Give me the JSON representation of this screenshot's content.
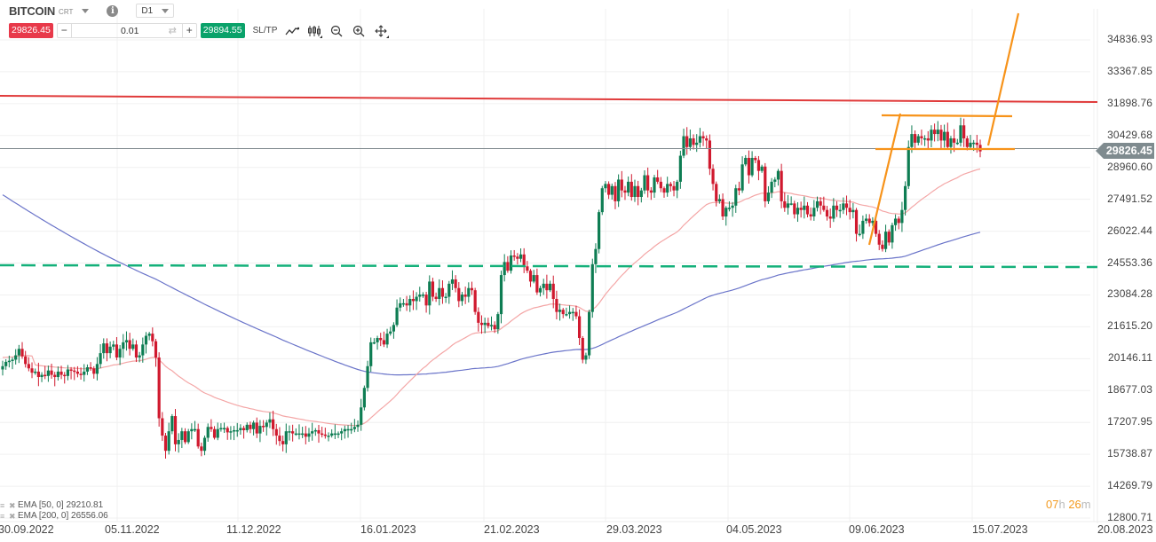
{
  "header": {
    "symbol": "BITCOIN",
    "symbol_suffix": "CRT",
    "timeframe": "D1",
    "sell_price": "29826.45",
    "quantity": "0.01",
    "buy_price": "29894.55",
    "sltp_label": "SL/TP",
    "icons": [
      "chart-type-icon",
      "indicators-icon",
      "zoom-out-icon",
      "zoom-in-icon",
      "crosshair-icon"
    ]
  },
  "colors": {
    "bull": "#0e7d53",
    "bear": "#d0192e",
    "ema50": "#f4a6a6",
    "ema200": "#6a74c9",
    "resistance": "#e03a3a",
    "support": "#14b07a",
    "drawing": "#f7931a",
    "current_line": "#808a8e",
    "sell": "#e8394a",
    "buy": "#0aa26a"
  },
  "legend": [
    {
      "label": "EMA [50, 0] 29210.81"
    },
    {
      "label": "EMA [200, 0] 26556.06"
    }
  ],
  "current_price_tag": "29826.45",
  "countdown": {
    "h": "07",
    "h_unit": "h",
    "m": "26",
    "m_unit": "m"
  },
  "chart_data": {
    "type": "candlestick",
    "title": "BITCOIN CRT D1",
    "xlabel": "",
    "ylabel": "",
    "y_ticks": [
      "34836.93",
      "33367.85",
      "31898.76",
      "30429.68",
      "28960.60",
      "27491.52",
      "26022.44",
      "24553.36",
      "23084.28",
      "21615.20",
      "20146.11",
      "18677.03",
      "17207.95",
      "15738.87",
      "14269.79",
      "12800.71"
    ],
    "x_ticks": [
      "30.09.2022",
      "05.11.2022",
      "11.12.2022",
      "16.01.2023",
      "21.02.2023",
      "29.03.2023",
      "04.05.2023",
      "09.06.2023",
      "15.07.2023",
      "20.08.2023"
    ],
    "ylim": [
      12800.71,
      34836.93
    ],
    "current_price": 29826.45,
    "horizontal_lines": [
      {
        "name": "resistance",
        "price_start": 32380,
        "price_end": 31950,
        "style": "solid"
      },
      {
        "name": "support",
        "price": 24600,
        "style": "dashed"
      }
    ],
    "indicators": [
      {
        "name": "EMA [50, 0]",
        "last": 29210.81
      },
      {
        "name": "EMA [200, 0]",
        "last": 26556.06
      }
    ],
    "closes": [
      19800,
      20000,
      20050,
      20100,
      20300,
      20600,
      20250,
      19900,
      19700,
      19500,
      19550,
      19300,
      19400,
      19350,
      19600,
      19400,
      19300,
      19550,
      19400,
      19350,
      19650,
      19600,
      19550,
      19450,
      19400,
      19550,
      19750,
      19700,
      19450,
      19900,
      20400,
      20850,
      20400,
      20700,
      20800,
      20200,
      20600,
      20900,
      21000,
      20600,
      20800,
      20200,
      20300,
      20800,
      21200,
      21300,
      20950,
      20200,
      17400,
      16600,
      15900,
      16800,
      17500,
      16200,
      16400,
      16800,
      16300,
      16800,
      16900,
      16900,
      16100,
      15900,
      16500,
      17000,
      16900,
      16500,
      16900,
      16950,
      16950,
      16750,
      16800,
      16850,
      16850,
      16950,
      16850,
      17100,
      16900,
      17200,
      16700,
      17050,
      17000,
      17200,
      17350,
      16900,
      16600,
      16350,
      16200,
      16800,
      16800,
      16700,
      16700,
      16700,
      16700,
      16550,
      16700,
      16800,
      16850,
      16700,
      16650,
      16600,
      16600,
      16700,
      16700,
      16700,
      16800,
      16900,
      16900,
      16900,
      17000,
      17100,
      17900,
      18800,
      19800,
      20900,
      20900,
      21100,
      21000,
      20800,
      21300,
      21400,
      21700,
      22500,
      22700,
      22700,
      22600,
      22900,
      22800,
      23000,
      23100,
      23100,
      22600,
      23700,
      23000,
      22900,
      23400,
      23000,
      23000,
      23600,
      23800,
      23400,
      22800,
      23100,
      23000,
      23400,
      23300,
      22300,
      21800,
      21700,
      21800,
      21650,
      21700,
      21500,
      22200,
      24000,
      24600,
      24200,
      24900,
      24850,
      24750,
      24950,
      24400,
      24200,
      23700,
      24000,
      23200,
      23400,
      23600,
      23300,
      23600,
      22900,
      22300,
      22400,
      22200,
      22200,
      22300,
      22300,
      22100,
      21100,
      20100,
      20300,
      22300,
      24500,
      25200,
      26900,
      28000,
      28200,
      27700,
      28100,
      27400,
      28400,
      27900,
      27800,
      28300,
      27600,
      28100,
      27600,
      27900,
      28600,
      27900,
      27800,
      28500,
      28300,
      28000,
      27800,
      28200,
      28100,
      27900,
      28300,
      29500,
      30400,
      29900,
      30300,
      30000,
      30100,
      30400,
      30300,
      30200,
      28900,
      28200,
      27400,
      27500,
      26700,
      27100,
      27100,
      27200,
      28000,
      27900,
      29100,
      29400,
      28600,
      29400,
      29300,
      28800,
      29000,
      27400,
      27800,
      28300,
      28400,
      28800,
      27400,
      27100,
      27300,
      27300,
      26800,
      27100,
      27000,
      27200,
      26800,
      26700,
      27100,
      27400,
      27200,
      27000,
      26700,
      26600,
      27200,
      27000,
      27000,
      27300,
      27100,
      26900,
      27000,
      25900,
      25900,
      26500,
      26600,
      26400,
      26500,
      25900,
      25400,
      25200,
      26000,
      25500,
      26300,
      26600,
      26400,
      27000,
      28100,
      29900,
      30500,
      30100,
      30400,
      30300,
      30300,
      30200,
      30700,
      30500,
      30700,
      30200,
      30600,
      29900,
      30300,
      30100,
      30100,
      30900,
      30300,
      29900,
      30100,
      30100,
      30000,
      29700
    ]
  }
}
